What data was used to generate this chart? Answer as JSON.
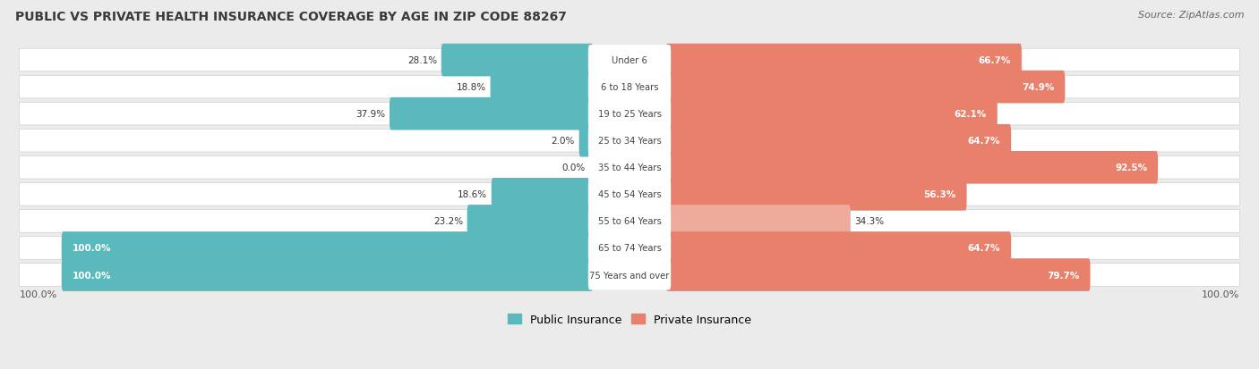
{
  "title": "PUBLIC VS PRIVATE HEALTH INSURANCE COVERAGE BY AGE IN ZIP CODE 88267",
  "source": "Source: ZipAtlas.com",
  "categories": [
    "Under 6",
    "6 to 18 Years",
    "19 to 25 Years",
    "25 to 34 Years",
    "35 to 44 Years",
    "45 to 54 Years",
    "55 to 64 Years",
    "65 to 74 Years",
    "75 Years and over"
  ],
  "public_values": [
    28.1,
    18.8,
    37.9,
    2.0,
    0.0,
    18.6,
    23.2,
    100.0,
    100.0
  ],
  "private_values": [
    66.7,
    74.9,
    62.1,
    64.7,
    92.5,
    56.3,
    34.3,
    64.7,
    79.7
  ],
  "public_color": "#5ab9bc",
  "private_color": "#e8806c",
  "private_color_light": "#eeaa9a",
  "background_color": "#ebebeb",
  "row_bg_color": "#f5f5f5",
  "title_fontsize": 10,
  "source_fontsize": 8,
  "label_fontsize": 8,
  "legend_fontsize": 9,
  "max_value": 100.0
}
